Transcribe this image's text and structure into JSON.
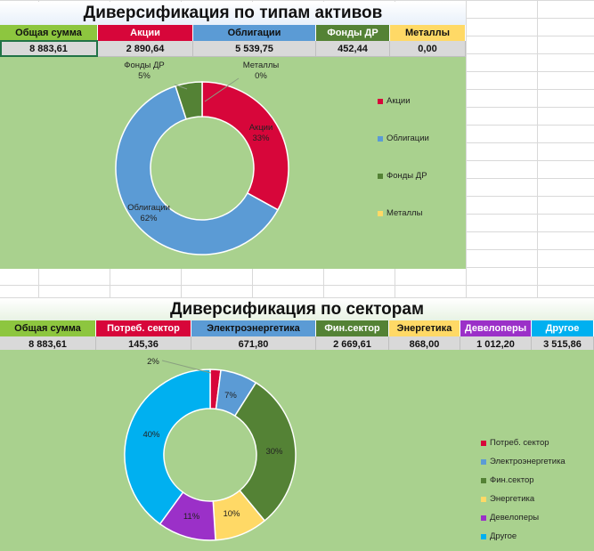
{
  "asset_section": {
    "title": "Диверсификация по типам активов",
    "headers": [
      "Общая сумма",
      "Акции",
      "Облигации",
      "Фонды ДР",
      "Металлы"
    ],
    "header_colors": [
      "#8dc63f",
      "#d7063a",
      "#5b9bd5",
      "#548235",
      "#ffd966"
    ],
    "header_text_colors": [
      "#111111",
      "#ffffff",
      "#111111",
      "#ffffff",
      "#111111"
    ],
    "values": [
      "8 883,61",
      "2 890,64",
      "5 539,75",
      "452,44",
      "0,00"
    ]
  },
  "sector_section": {
    "title": "Диверсификация по секторам",
    "headers": [
      "Общая сумма",
      "Потреб. сектор",
      "Электроэнергетика",
      "Фин.сектор",
      "Энергетика",
      "Девелоперы",
      "Другое"
    ],
    "header_colors": [
      "#8dc63f",
      "#d7063a",
      "#5b9bd5",
      "#548235",
      "#ffd966",
      "#9b30c8",
      "#00b0f0"
    ],
    "header_text_colors": [
      "#111111",
      "#ffffff",
      "#111111",
      "#ffffff",
      "#111111",
      "#ffffff",
      "#ffffff"
    ],
    "values": [
      "8 883,61",
      "145,36",
      "671,80",
      "2 669,61",
      "868,00",
      "1 012,20",
      "3 515,86"
    ]
  },
  "chart_data": [
    {
      "type": "pie",
      "subtype": "doughnut",
      "categories": [
        "Акции",
        "Облигации",
        "Фонды ДР",
        "Металлы"
      ],
      "values": [
        33,
        62,
        5,
        0
      ],
      "labels": [
        "Акции\n33%",
        "Облигации\n62%",
        "Фонды ДР\n5%",
        "Металлы\n0%"
      ],
      "colors": [
        "#d7063a",
        "#5b9bd5",
        "#548235",
        "#ffd966"
      ],
      "legend": "right",
      "background": "#a9d18e"
    },
    {
      "type": "pie",
      "subtype": "doughnut",
      "categories": [
        "Потреб. сектор",
        "Электроэнергетика",
        "Фин.сектор",
        "Энергетика",
        "Девелоперы",
        "Другое"
      ],
      "values": [
        2,
        7,
        30,
        10,
        11,
        40
      ],
      "labels": [
        "2%",
        "7%",
        "30%",
        "10%",
        "11%",
        "40%"
      ],
      "colors": [
        "#d7063a",
        "#5b9bd5",
        "#548235",
        "#ffd966",
        "#9b30c8",
        "#00b0f0"
      ],
      "legend": "right",
      "background": "#a9d18e"
    }
  ]
}
